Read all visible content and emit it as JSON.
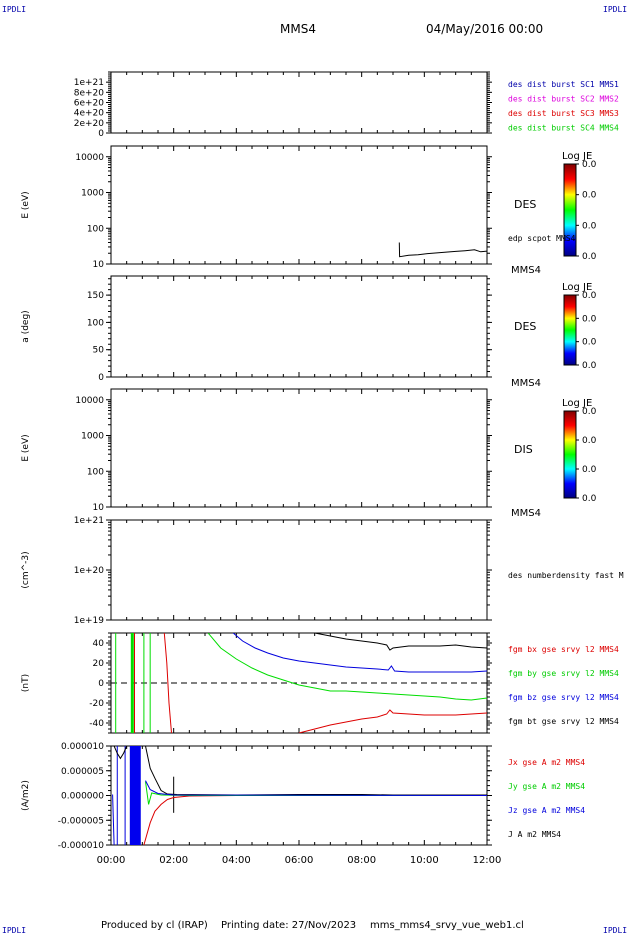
{
  "corner_label": "IPDLI",
  "header": {
    "spacecraft": "MMS4",
    "date": "04/May/2016 00:00"
  },
  "footer": {
    "produced_by": "Produced by cl (IRAP)",
    "printing_date": "Printing date: 27/Nov/2023",
    "filename": "mms_mms4_srvy_vue_web1.cl"
  },
  "colors": {
    "black": "#000000",
    "red": "#dd0000",
    "green": "#00dd00",
    "blue": "#0000dd",
    "magenta": "#dd00dd",
    "navy": "#0000aa"
  },
  "x_axis": {
    "range_hours": [
      0,
      12
    ],
    "tick_hours": [
      0,
      2,
      4,
      6,
      8,
      10,
      12
    ],
    "tick_labels": [
      "00:00",
      "02:00",
      "04:00",
      "06:00",
      "08:00",
      "10:00",
      "12:00"
    ]
  },
  "colorbar": {
    "title": "Log JE",
    "labels": [
      "0.0",
      "0.0",
      "0.0",
      "0.0"
    ],
    "colors": [
      "#000080",
      "#0000ff",
      "#00ffff",
      "#00ff00",
      "#ffff00",
      "#ff0000",
      "#800000"
    ]
  },
  "chart_data": [
    {
      "type": "line",
      "id": "panel1",
      "scale": "linear",
      "ylim": [
        0,
        1.2e+21
      ],
      "ylabel": "",
      "yticks": [
        0,
        2e+20,
        4e+20,
        6e+20,
        8e+20,
        1e+21
      ],
      "ytick_labels": [
        "0",
        "2e+20",
        "4e+20",
        "6e+20",
        "8e+20",
        "1e+21"
      ],
      "ref_line": 0,
      "legend": [
        {
          "text": "des dist burst SC1 MMS1",
          "color": "#0000aa"
        },
        {
          "text": "des dist burst SC2 MMS2",
          "color": "#dd00dd"
        },
        {
          "text": "des dist burst SC3 MMS3",
          "color": "#dd0000"
        },
        {
          "text": "des dist burst SC4 MMS4",
          "color": "#00cc00"
        }
      ],
      "series": []
    },
    {
      "type": "heatmap",
      "id": "panel2",
      "scale": "log",
      "ylim": [
        10,
        20000
      ],
      "ylabel": "E (eV)",
      "yticks": [
        10,
        100,
        1000,
        10000
      ],
      "ytick_labels": [
        "10",
        "100",
        "1000",
        "10000"
      ],
      "side_label": "DES",
      "footer_label": "MMS4",
      "colorbar": true,
      "legend": [
        {
          "text": "edp scpot MMS4",
          "color": "#000000"
        }
      ],
      "series": [
        {
          "name": "edp scpot MMS4",
          "color": "#000000",
          "points": [
            [
              9.2,
              40
            ],
            [
              9.21,
              16
            ],
            [
              9.5,
              17.5
            ],
            [
              9.8,
              18.2
            ],
            [
              10.1,
              19.5
            ],
            [
              10.4,
              20.5
            ],
            [
              10.7,
              21.5
            ],
            [
              11.0,
              22.5
            ],
            [
              11.3,
              23.5
            ],
            [
              11.6,
              25
            ],
            [
              11.8,
              22
            ],
            [
              12.0,
              23
            ]
          ]
        }
      ]
    },
    {
      "type": "heatmap",
      "id": "panel3",
      "scale": "linear",
      "ylim": [
        0,
        185
      ],
      "ylabel": "a (deg)",
      "yticks": [
        0,
        50,
        100,
        150
      ],
      "ytick_labels": [
        "0",
        "50",
        "100",
        "150"
      ],
      "side_label": "DES",
      "footer_label": "MMS4",
      "colorbar": true,
      "legend": [],
      "series": []
    },
    {
      "type": "heatmap",
      "id": "panel4",
      "scale": "log",
      "ylim": [
        10,
        20000
      ],
      "ylabel": "E (eV)",
      "yticks": [
        10,
        100,
        1000,
        10000
      ],
      "ytick_labels": [
        "10",
        "100",
        "1000",
        "10000"
      ],
      "side_label": "DIS",
      "footer_label": "MMS4",
      "colorbar": true,
      "legend": [],
      "series": []
    },
    {
      "type": "line",
      "id": "panel5",
      "scale": "log",
      "ylim": [
        1e+19,
        1e+21
      ],
      "ylabel": "(cm^-3)",
      "yticks": [
        1e+19,
        1e+20,
        1e+21
      ],
      "ytick_labels": [
        "1e+19",
        "1e+20",
        "1e+21"
      ],
      "legend": [
        {
          "text": "des numberdensity fast M",
          "color": "#000000"
        }
      ],
      "series": []
    },
    {
      "type": "line",
      "id": "panel6",
      "scale": "linear",
      "ylim": [
        -50,
        50
      ],
      "ylabel": "(nT)",
      "yticks": [
        -40,
        -20,
        0,
        20,
        40
      ],
      "ytick_labels": [
        "-40",
        "-20",
        "0",
        "20",
        "40"
      ],
      "ref_line": 0,
      "legend": [
        {
          "text": "fgm bx gse srvy l2 MMS4",
          "color": "#dd0000"
        },
        {
          "text": "fgm by gse srvy l2 MMS4",
          "color": "#00cc00"
        },
        {
          "text": "fgm bz gse srvy l2 MMS4",
          "color": "#0000dd"
        },
        {
          "text": "fgm bt gse srvy l2 MMS4",
          "color": "#000000"
        }
      ],
      "vlines": [
        {
          "x": 0.15,
          "color": "#00dd00",
          "width": 1
        },
        {
          "x": 0.68,
          "color": "#00dd00",
          "width": 3
        },
        {
          "x": 0.75,
          "color": "#dd0000",
          "width": 1
        },
        {
          "x": 1.05,
          "color": "#00dd00",
          "width": 1
        },
        {
          "x": 1.25,
          "color": "#00dd00",
          "width": 1
        }
      ],
      "series": [
        {
          "name": "bx",
          "color": "#dd0000",
          "points": [
            [
              1.7,
              50
            ],
            [
              1.78,
              20
            ],
            [
              1.85,
              -20
            ],
            [
              1.93,
              -50
            ],
            [
              null,
              null
            ],
            [
              6.0,
              -50
            ],
            [
              6.5,
              -46
            ],
            [
              7.0,
              -42
            ],
            [
              7.5,
              -39
            ],
            [
              8.0,
              -36
            ],
            [
              8.5,
              -34
            ],
            [
              8.8,
              -31
            ],
            [
              8.9,
              -27
            ],
            [
              9.0,
              -30
            ],
            [
              9.5,
              -31
            ],
            [
              10.0,
              -32
            ],
            [
              10.5,
              -32
            ],
            [
              11.0,
              -32
            ],
            [
              11.5,
              -31
            ],
            [
              12.0,
              -30
            ]
          ]
        },
        {
          "name": "by",
          "color": "#00dd00",
          "points": [
            [
              3.1,
              50
            ],
            [
              3.5,
              35
            ],
            [
              4.0,
              24
            ],
            [
              4.5,
              15
            ],
            [
              5.0,
              8
            ],
            [
              5.5,
              3
            ],
            [
              6.0,
              -2
            ],
            [
              6.5,
              -5
            ],
            [
              7.0,
              -8
            ],
            [
              7.5,
              -8
            ],
            [
              8.0,
              -9
            ],
            [
              8.5,
              -10
            ],
            [
              9.0,
              -11
            ],
            [
              9.5,
              -12
            ],
            [
              10.0,
              -13
            ],
            [
              10.5,
              -14
            ],
            [
              11.0,
              -16
            ],
            [
              11.5,
              -17
            ],
            [
              12.0,
              -15
            ]
          ]
        },
        {
          "name": "bz",
          "color": "#0000dd",
          "points": [
            [
              3.9,
              50
            ],
            [
              4.2,
              42
            ],
            [
              4.6,
              35
            ],
            [
              5.0,
              30
            ],
            [
              5.5,
              25
            ],
            [
              6.0,
              22
            ],
            [
              6.5,
              20
            ],
            [
              7.0,
              18
            ],
            [
              7.5,
              16
            ],
            [
              8.0,
              15
            ],
            [
              8.5,
              14
            ],
            [
              8.85,
              13
            ],
            [
              8.95,
              17
            ],
            [
              9.05,
              12
            ],
            [
              9.5,
              11
            ],
            [
              10.0,
              11
            ],
            [
              10.5,
              11
            ],
            [
              11.0,
              11
            ],
            [
              11.5,
              11
            ],
            [
              12.0,
              12
            ]
          ]
        },
        {
          "name": "bt",
          "color": "#000000",
          "points": [
            [
              6.5,
              50
            ],
            [
              7.0,
              47
            ],
            [
              7.5,
              44
            ],
            [
              8.0,
              42
            ],
            [
              8.5,
              40
            ],
            [
              8.8,
              38
            ],
            [
              8.9,
              33
            ],
            [
              9.0,
              35
            ],
            [
              9.5,
              37
            ],
            [
              10.0,
              37
            ],
            [
              10.5,
              37
            ],
            [
              11.0,
              38
            ],
            [
              11.5,
              36
            ],
            [
              12.0,
              35
            ]
          ]
        }
      ]
    },
    {
      "type": "line",
      "id": "panel7",
      "scale": "linear",
      "ylim": [
        -1e-05,
        1e-05
      ],
      "ylabel": "(A/m2)",
      "yticks": [
        -1e-05,
        -5e-06,
        0,
        5e-06,
        1e-05
      ],
      "ytick_labels": [
        "-0.000010",
        "-0.000005",
        "0.000000",
        "0.000005",
        "0.000010"
      ],
      "legend": [
        {
          "text": "Jx gse A m2 MMS4",
          "color": "#dd0000"
        },
        {
          "text": "Jy gse A m2 MMS4",
          "color": "#00cc00"
        },
        {
          "text": "Jz gse A m2 MMS4",
          "color": "#0000dd"
        },
        {
          "text": "J A m2 MMS4",
          "color": "#000000"
        }
      ],
      "vbands": [
        {
          "x0": 0.6,
          "x1": 0.95,
          "color": "#0000ee"
        }
      ],
      "vlines": [
        {
          "x": 0.2,
          "color": "#0000dd",
          "width": 1
        },
        {
          "x": 0.45,
          "color": "#0000dd",
          "width": 1
        },
        {
          "x": 2.0,
          "color": "#000000",
          "width": 1,
          "y0": -3.5e-06,
          "y1": 3.8e-06
        }
      ],
      "series": [
        {
          "name": "J",
          "color": "#000000",
          "points": [
            [
              0.1,
              1e-05
            ],
            [
              0.2,
              8.5e-06
            ],
            [
              0.3,
              7.5e-06
            ],
            [
              0.4,
              8.5e-06
            ],
            [
              0.5,
              1e-05
            ],
            [
              null,
              null
            ],
            [
              1.1,
              1e-05
            ],
            [
              1.25,
              5.5e-06
            ],
            [
              1.4,
              3.5e-06
            ],
            [
              1.6,
              1e-06
            ],
            [
              1.8,
              3e-07
            ],
            [
              2.1,
              2e-07
            ],
            [
              4.0,
              1e-07
            ],
            [
              6.0,
              2e-07
            ],
            [
              8.0,
              2e-07
            ],
            [
              9.0,
              1e-07
            ],
            [
              10.0,
              1e-07
            ],
            [
              12.0,
              1e-07
            ]
          ]
        },
        {
          "name": "Jx",
          "color": "#dd0000",
          "points": [
            [
              1.05,
              -1e-05
            ],
            [
              1.25,
              -5.5e-06
            ],
            [
              1.4,
              -3.2e-06
            ],
            [
              1.6,
              -1.8e-06
            ],
            [
              1.8,
              -8e-07
            ],
            [
              2.0,
              -4e-07
            ],
            [
              2.5,
              -1e-07
            ],
            [
              4.0,
              0
            ],
            [
              12.0,
              0
            ]
          ]
        },
        {
          "name": "Jy",
          "color": "#00dd00",
          "points": [
            [
              1.1,
              2.8e-06
            ],
            [
              1.2,
              -1.8e-06
            ],
            [
              1.3,
              5e-07
            ],
            [
              1.6,
              1e-07
            ],
            [
              2.5,
              0
            ],
            [
              12.0,
              0
            ]
          ]
        },
        {
          "name": "Jz",
          "color": "#0000dd",
          "points": [
            [
              0.05,
              2e-07
            ],
            [
              0.1,
              -1e-05
            ],
            [
              null,
              null
            ],
            [
              1.1,
              3e-06
            ],
            [
              1.25,
              1.2e-06
            ],
            [
              1.5,
              4e-07
            ],
            [
              2.0,
              1e-07
            ],
            [
              12.0,
              0
            ]
          ]
        }
      ]
    }
  ]
}
